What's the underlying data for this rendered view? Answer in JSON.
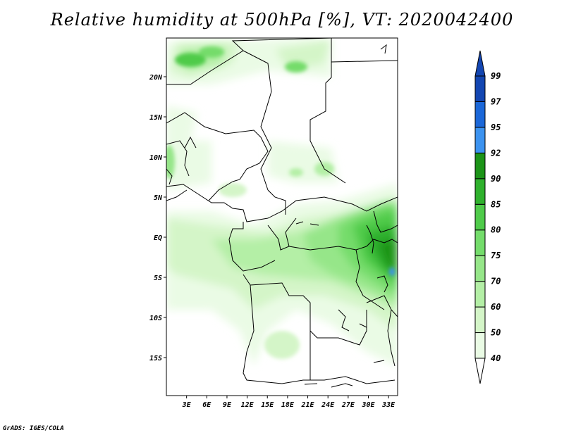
{
  "title": "Relative humidity at 500hPa [%], VT: 2020042400",
  "credit": "GrADS: IGES/COLA",
  "colors": {
    "c40": "#ffffff",
    "c50": "#eafbe5",
    "c60": "#d4f5c8",
    "c70": "#b4efa6",
    "c75": "#96e689",
    "c80": "#74dc6b",
    "c85": "#4fcb4a",
    "c90": "#2fb12d",
    "c92": "#1c9418",
    "c95": "#3c93f0",
    "c97": "#1b67d8",
    "c99": "#1346b2",
    "border": "#000000"
  },
  "chart_data": {
    "type": "map",
    "variable": "Relative humidity",
    "level": "500hPa",
    "units": "%",
    "valid_time": "2020042400",
    "lon_range": [
      0,
      34
    ],
    "lat_range": [
      -20,
      25
    ],
    "x_ticks": [
      "3E",
      "6E",
      "9E",
      "12E",
      "15E",
      "18E",
      "21E",
      "24E",
      "27E",
      "30E",
      "33E"
    ],
    "x_tick_values": [
      3,
      6,
      9,
      12,
      15,
      18,
      21,
      24,
      27,
      30,
      33
    ],
    "y_ticks": [
      "20N",
      "15N",
      "10N",
      "5N",
      "EQ",
      "5S",
      "10S",
      "15S"
    ],
    "y_tick_values": [
      20,
      15,
      10,
      5,
      0,
      -5,
      -10,
      -15
    ],
    "colorbar_levels": [
      "40",
      "50",
      "60",
      "70",
      "75",
      "80",
      "85",
      "90",
      "92",
      "95",
      "97",
      "99"
    ],
    "colorbar_level_values": [
      40,
      50,
      60,
      70,
      75,
      80,
      85,
      90,
      92,
      95,
      97,
      99
    ]
  }
}
